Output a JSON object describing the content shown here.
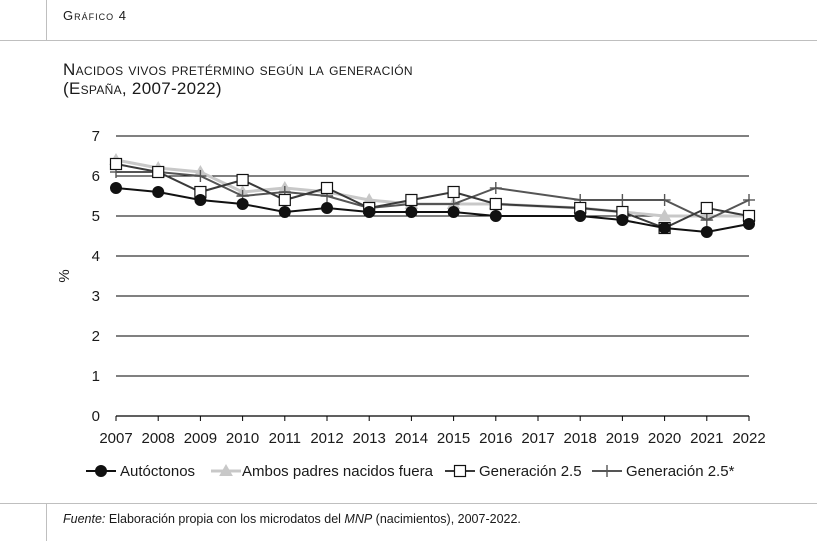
{
  "figure_label": "Gráfico 4",
  "title_line1": "Nacidos vivos pretérmino según la generación",
  "title_line2": "(España, 2007-2022)",
  "source": {
    "label": "Fuente:",
    "text_before": "Elaboración propia con los microdatos del ",
    "italic": "MNP",
    "text_after": " (nacimientos), 2007-2022."
  },
  "chart_data": {
    "type": "line",
    "ylabel": "%",
    "xlabel": "",
    "ylim": [
      0,
      7
    ],
    "yticks": [
      0,
      1,
      2,
      3,
      4,
      5,
      6,
      7
    ],
    "grid": "horizontal",
    "legend_position": "bottom",
    "categories": [
      "2007",
      "2008",
      "2009",
      "2010",
      "2011",
      "2012",
      "2013",
      "2014",
      "2015",
      "2016",
      "2017",
      "2018",
      "2019",
      "2020",
      "2021",
      "2022"
    ],
    "series": [
      {
        "name": "Autóctonos",
        "color": "#111111",
        "marker": "filled-circle",
        "values": [
          5.7,
          5.6,
          5.4,
          5.3,
          5.1,
          5.2,
          5.1,
          5.1,
          5.1,
          5.0,
          null,
          5.0,
          4.9,
          4.7,
          4.6,
          4.8
        ]
      },
      {
        "name": "Ambos padres nacidos fuera",
        "color": "#c8c8c8",
        "marker": "triangle",
        "values": [
          6.4,
          6.2,
          6.1,
          5.6,
          5.7,
          5.6,
          5.4,
          5.3,
          5.3,
          5.3,
          null,
          5.2,
          5.1,
          5.0,
          5.0,
          5.0
        ]
      },
      {
        "name": "Generación 2.5",
        "color": "#3a3a3a",
        "marker": "open-square",
        "values": [
          6.3,
          6.1,
          5.6,
          5.9,
          5.4,
          5.7,
          5.2,
          5.4,
          5.6,
          5.3,
          null,
          5.2,
          5.1,
          4.7,
          5.2,
          5.0
        ]
      },
      {
        "name": "Generación 2.5*",
        "color": "#555555",
        "marker": "plus",
        "values": [
          6.1,
          6.1,
          6.0,
          5.5,
          5.6,
          5.5,
          5.2,
          5.3,
          5.3,
          5.7,
          null,
          5.4,
          5.4,
          5.4,
          4.9,
          5.4
        ]
      }
    ]
  }
}
